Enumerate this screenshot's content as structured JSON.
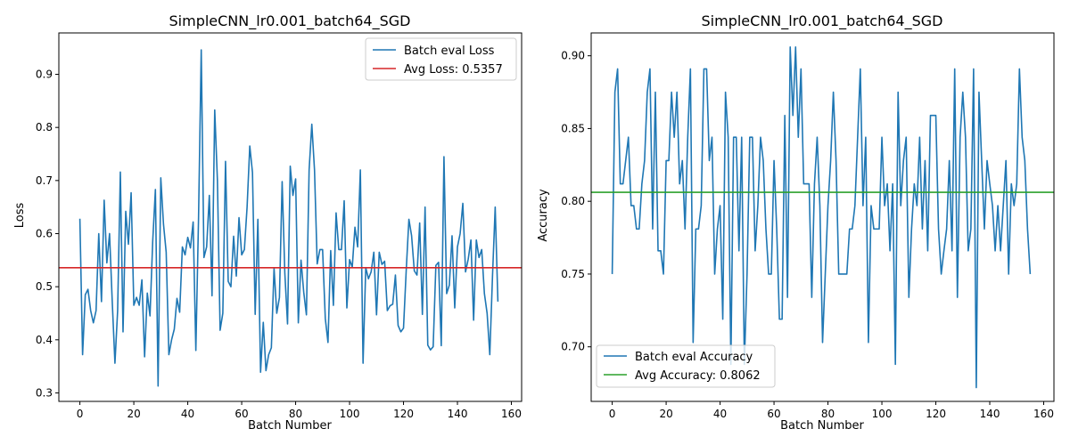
{
  "chart_data": [
    {
      "type": "line",
      "title": "SimpleCNN_lr0.001_batch64_SGD",
      "xlabel": "Batch Number",
      "ylabel": "Loss",
      "xlim": [
        -7.8,
        163.8
      ],
      "ylim": [
        0.284,
        0.978
      ],
      "xticks": [
        0,
        20,
        40,
        60,
        80,
        100,
        120,
        140,
        160
      ],
      "yticks": [
        0.3,
        0.4,
        0.5,
        0.6,
        0.7,
        0.8,
        0.9
      ],
      "xtick_labels": [
        "0",
        "20",
        "40",
        "60",
        "80",
        "100",
        "120",
        "140",
        "160"
      ],
      "ytick_labels": [
        "0.3",
        "0.4",
        "0.5",
        "0.6",
        "0.7",
        "0.8",
        "0.9"
      ],
      "grid": false,
      "legend_position": "top-right",
      "series": [
        {
          "name": "Batch eval Loss",
          "color": "#1f77b4",
          "x_start": 0,
          "values": [
            0.628,
            0.372,
            0.485,
            0.495,
            0.455,
            0.432,
            0.455,
            0.6,
            0.472,
            0.663,
            0.545,
            0.6,
            0.472,
            0.356,
            0.455,
            0.716,
            0.415,
            0.642,
            0.58,
            0.677,
            0.465,
            0.48,
            0.465,
            0.513,
            0.368,
            0.488,
            0.445,
            0.585,
            0.683,
            0.313,
            0.705,
            0.618,
            0.565,
            0.372,
            0.4,
            0.42,
            0.478,
            0.452,
            0.575,
            0.56,
            0.593,
            0.573,
            0.622,
            0.38,
            0.63,
            0.946,
            0.555,
            0.575,
            0.672,
            0.483,
            0.833,
            0.7,
            0.418,
            0.45,
            0.736,
            0.51,
            0.5,
            0.595,
            0.52,
            0.63,
            0.56,
            0.57,
            0.65,
            0.765,
            0.715,
            0.448,
            0.627,
            0.339,
            0.433,
            0.342,
            0.372,
            0.385,
            0.535,
            0.45,
            0.48,
            0.698,
            0.525,
            0.43,
            0.727,
            0.672,
            0.703,
            0.432,
            0.55,
            0.49,
            0.447,
            0.72,
            0.806,
            0.72,
            0.543,
            0.57,
            0.57,
            0.44,
            0.395,
            0.568,
            0.465,
            0.639,
            0.57,
            0.57,
            0.662,
            0.46,
            0.551,
            0.537,
            0.612,
            0.575,
            0.72,
            0.356,
            0.536,
            0.515,
            0.528,
            0.565,
            0.447,
            0.565,
            0.542,
            0.548,
            0.455,
            0.464,
            0.467,
            0.522,
            0.427,
            0.415,
            0.422,
            0.53,
            0.627,
            0.596,
            0.53,
            0.522,
            0.62,
            0.448,
            0.65,
            0.39,
            0.381,
            0.387,
            0.54,
            0.546,
            0.389,
            0.745,
            0.487,
            0.503,
            0.596,
            0.46,
            0.575,
            0.6,
            0.657,
            0.528,
            0.552,
            0.588,
            0.437,
            0.588,
            0.555,
            0.57,
            0.487,
            0.45,
            0.372,
            0.52,
            0.65,
            0.472
          ]
        },
        {
          "name": "Avg Loss: 0.5357",
          "color": "#d62728",
          "type": "hline",
          "value": 0.5357
        }
      ]
    },
    {
      "type": "line",
      "title": "SimpleCNN_lr0.001_batch64_SGD",
      "xlabel": "Batch Number",
      "ylabel": "Accuracy",
      "xlim": [
        -7.8,
        163.8
      ],
      "ylim": [
        0.6625,
        0.9157
      ],
      "xticks": [
        0,
        20,
        40,
        60,
        80,
        100,
        120,
        140,
        160
      ],
      "yticks": [
        0.7,
        0.75,
        0.8,
        0.85,
        0.9
      ],
      "xtick_labels": [
        "0",
        "20",
        "40",
        "60",
        "80",
        "100",
        "120",
        "140",
        "160"
      ],
      "ytick_labels": [
        "0.70",
        "0.75",
        "0.80",
        "0.85",
        "0.90"
      ],
      "grid": false,
      "legend_position": "bottom-left",
      "series": [
        {
          "name": "Batch eval Accuracy",
          "color": "#1f77b4",
          "x_start": 0,
          "values": [
            0.75,
            0.875,
            0.891,
            0.812,
            0.812,
            0.828,
            0.844,
            0.797,
            0.797,
            0.781,
            0.781,
            0.812,
            0.828,
            0.875,
            0.891,
            0.781,
            0.875,
            0.766,
            0.766,
            0.75,
            0.828,
            0.828,
            0.875,
            0.844,
            0.875,
            0.812,
            0.828,
            0.781,
            0.844,
            0.891,
            0.703,
            0.781,
            0.781,
            0.797,
            0.891,
            0.891,
            0.828,
            0.844,
            0.75,
            0.781,
            0.797,
            0.719,
            0.875,
            0.844,
            0.688,
            0.844,
            0.844,
            0.766,
            0.844,
            0.688,
            0.75,
            0.844,
            0.844,
            0.766,
            0.797,
            0.844,
            0.828,
            0.781,
            0.75,
            0.75,
            0.828,
            0.781,
            0.719,
            0.719,
            0.859,
            0.734,
            0.906,
            0.859,
            0.906,
            0.844,
            0.891,
            0.812,
            0.812,
            0.812,
            0.734,
            0.812,
            0.844,
            0.797,
            0.703,
            0.75,
            0.797,
            0.828,
            0.875,
            0.828,
            0.75,
            0.75,
            0.75,
            0.75,
            0.781,
            0.781,
            0.797,
            0.844,
            0.891,
            0.797,
            0.844,
            0.703,
            0.797,
            0.781,
            0.781,
            0.781,
            0.844,
            0.797,
            0.812,
            0.766,
            0.812,
            0.688,
            0.875,
            0.797,
            0.828,
            0.844,
            0.734,
            0.781,
            0.812,
            0.797,
            0.844,
            0.781,
            0.828,
            0.766,
            0.859,
            0.859,
            0.859,
            0.781,
            0.75,
            0.766,
            0.781,
            0.828,
            0.766,
            0.891,
            0.734,
            0.844,
            0.875,
            0.844,
            0.766,
            0.781,
            0.891,
            0.672,
            0.875,
            0.828,
            0.781,
            0.828,
            0.812,
            0.797,
            0.766,
            0.797,
            0.766,
            0.797,
            0.828,
            0.75,
            0.812,
            0.797,
            0.812,
            0.891,
            0.844,
            0.828,
            0.781,
            0.75
          ]
        },
        {
          "name": "Avg Accuracy: 0.8062",
          "color": "#2ca02c",
          "type": "hline",
          "value": 0.8062
        }
      ]
    }
  ]
}
